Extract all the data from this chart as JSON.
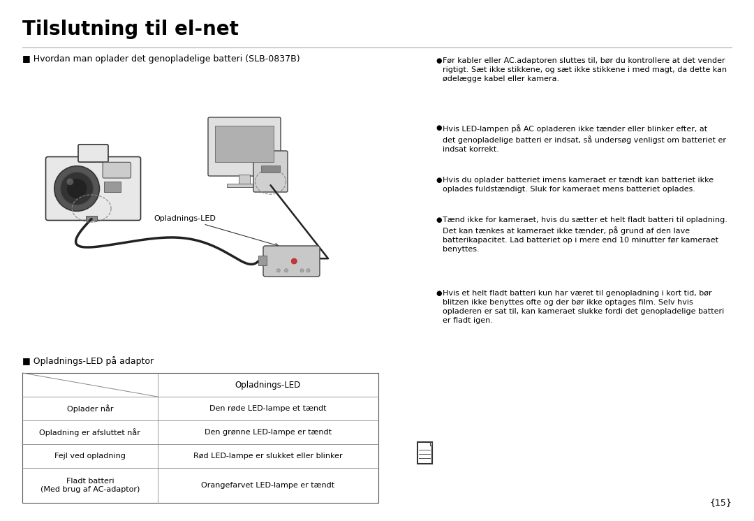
{
  "title": "Tilslutning til el-net",
  "bg_color": "#ffffff",
  "text_color": "#000000",
  "page_number": "{15}",
  "left_header": "■ Hvordan man oplader det genopladelige batteri (SLB-0837B)",
  "opladnings_led_label": "Opladnings-LED",
  "bullet_points": [
    "Før kabler eller AC.adaptoren sluttes til, bør du kontrollere at det vender\nrigtigt. Sæt ikke stikkene, og sæt ikke stikkene i med magt, da dette kan\nødelægge kabel eller kamera.",
    "Hvis LED-lampen på AC opladeren ikke tænder eller blinker efter, at\ndet genopladelige batteri er indsat, så undersøg venligst om batteriet er\nindsat korrekt.",
    "Hvis du oplader batteriet imens kameraet er tændt kan batteriet ikke\noplades fuldstændigt. Sluk for kameraet mens batteriet oplades.",
    "Tænd ikke for kameraet, hvis du sætter et helt fladt batteri til opladning.\nDet kan tænkes at kameraet ikke tænder, på grund af den lave\nbatterikapacitet. Lad batteriet op i mere end 10 minutter før kameraet\nbenyttes.",
    "Hvis et helt fladt batteri kun har været til genopladning i kort tid, bør\nblitzen ikke benyttes ofte og der bør ikke optages film. Selv hvis\nopladeren er sat til, kan kameraet slukke fordi det genopladelige batteri\ner fladt igen."
  ],
  "table_header": "■ Opladnings-LED på adaptor",
  "table_col2_header": "Opladnings-LED",
  "table_rows": [
    [
      "Oplader når",
      "Den røde LED-lampe et tændt"
    ],
    [
      "Opladning er afsluttet når",
      "Den grønne LED-lampe er tændt"
    ],
    [
      "Fejl ved opladning",
      "Rød LED-lampe er slukket eller blinker"
    ],
    [
      "Fladt batteri\n(Med brug af AC-adaptor)",
      "Orangefarvet LED-lampe er tændt"
    ]
  ],
  "font_size_title": 20,
  "font_size_header": 9,
  "font_size_body": 8.5,
  "font_size_table": 8.5,
  "font_size_page": 9
}
